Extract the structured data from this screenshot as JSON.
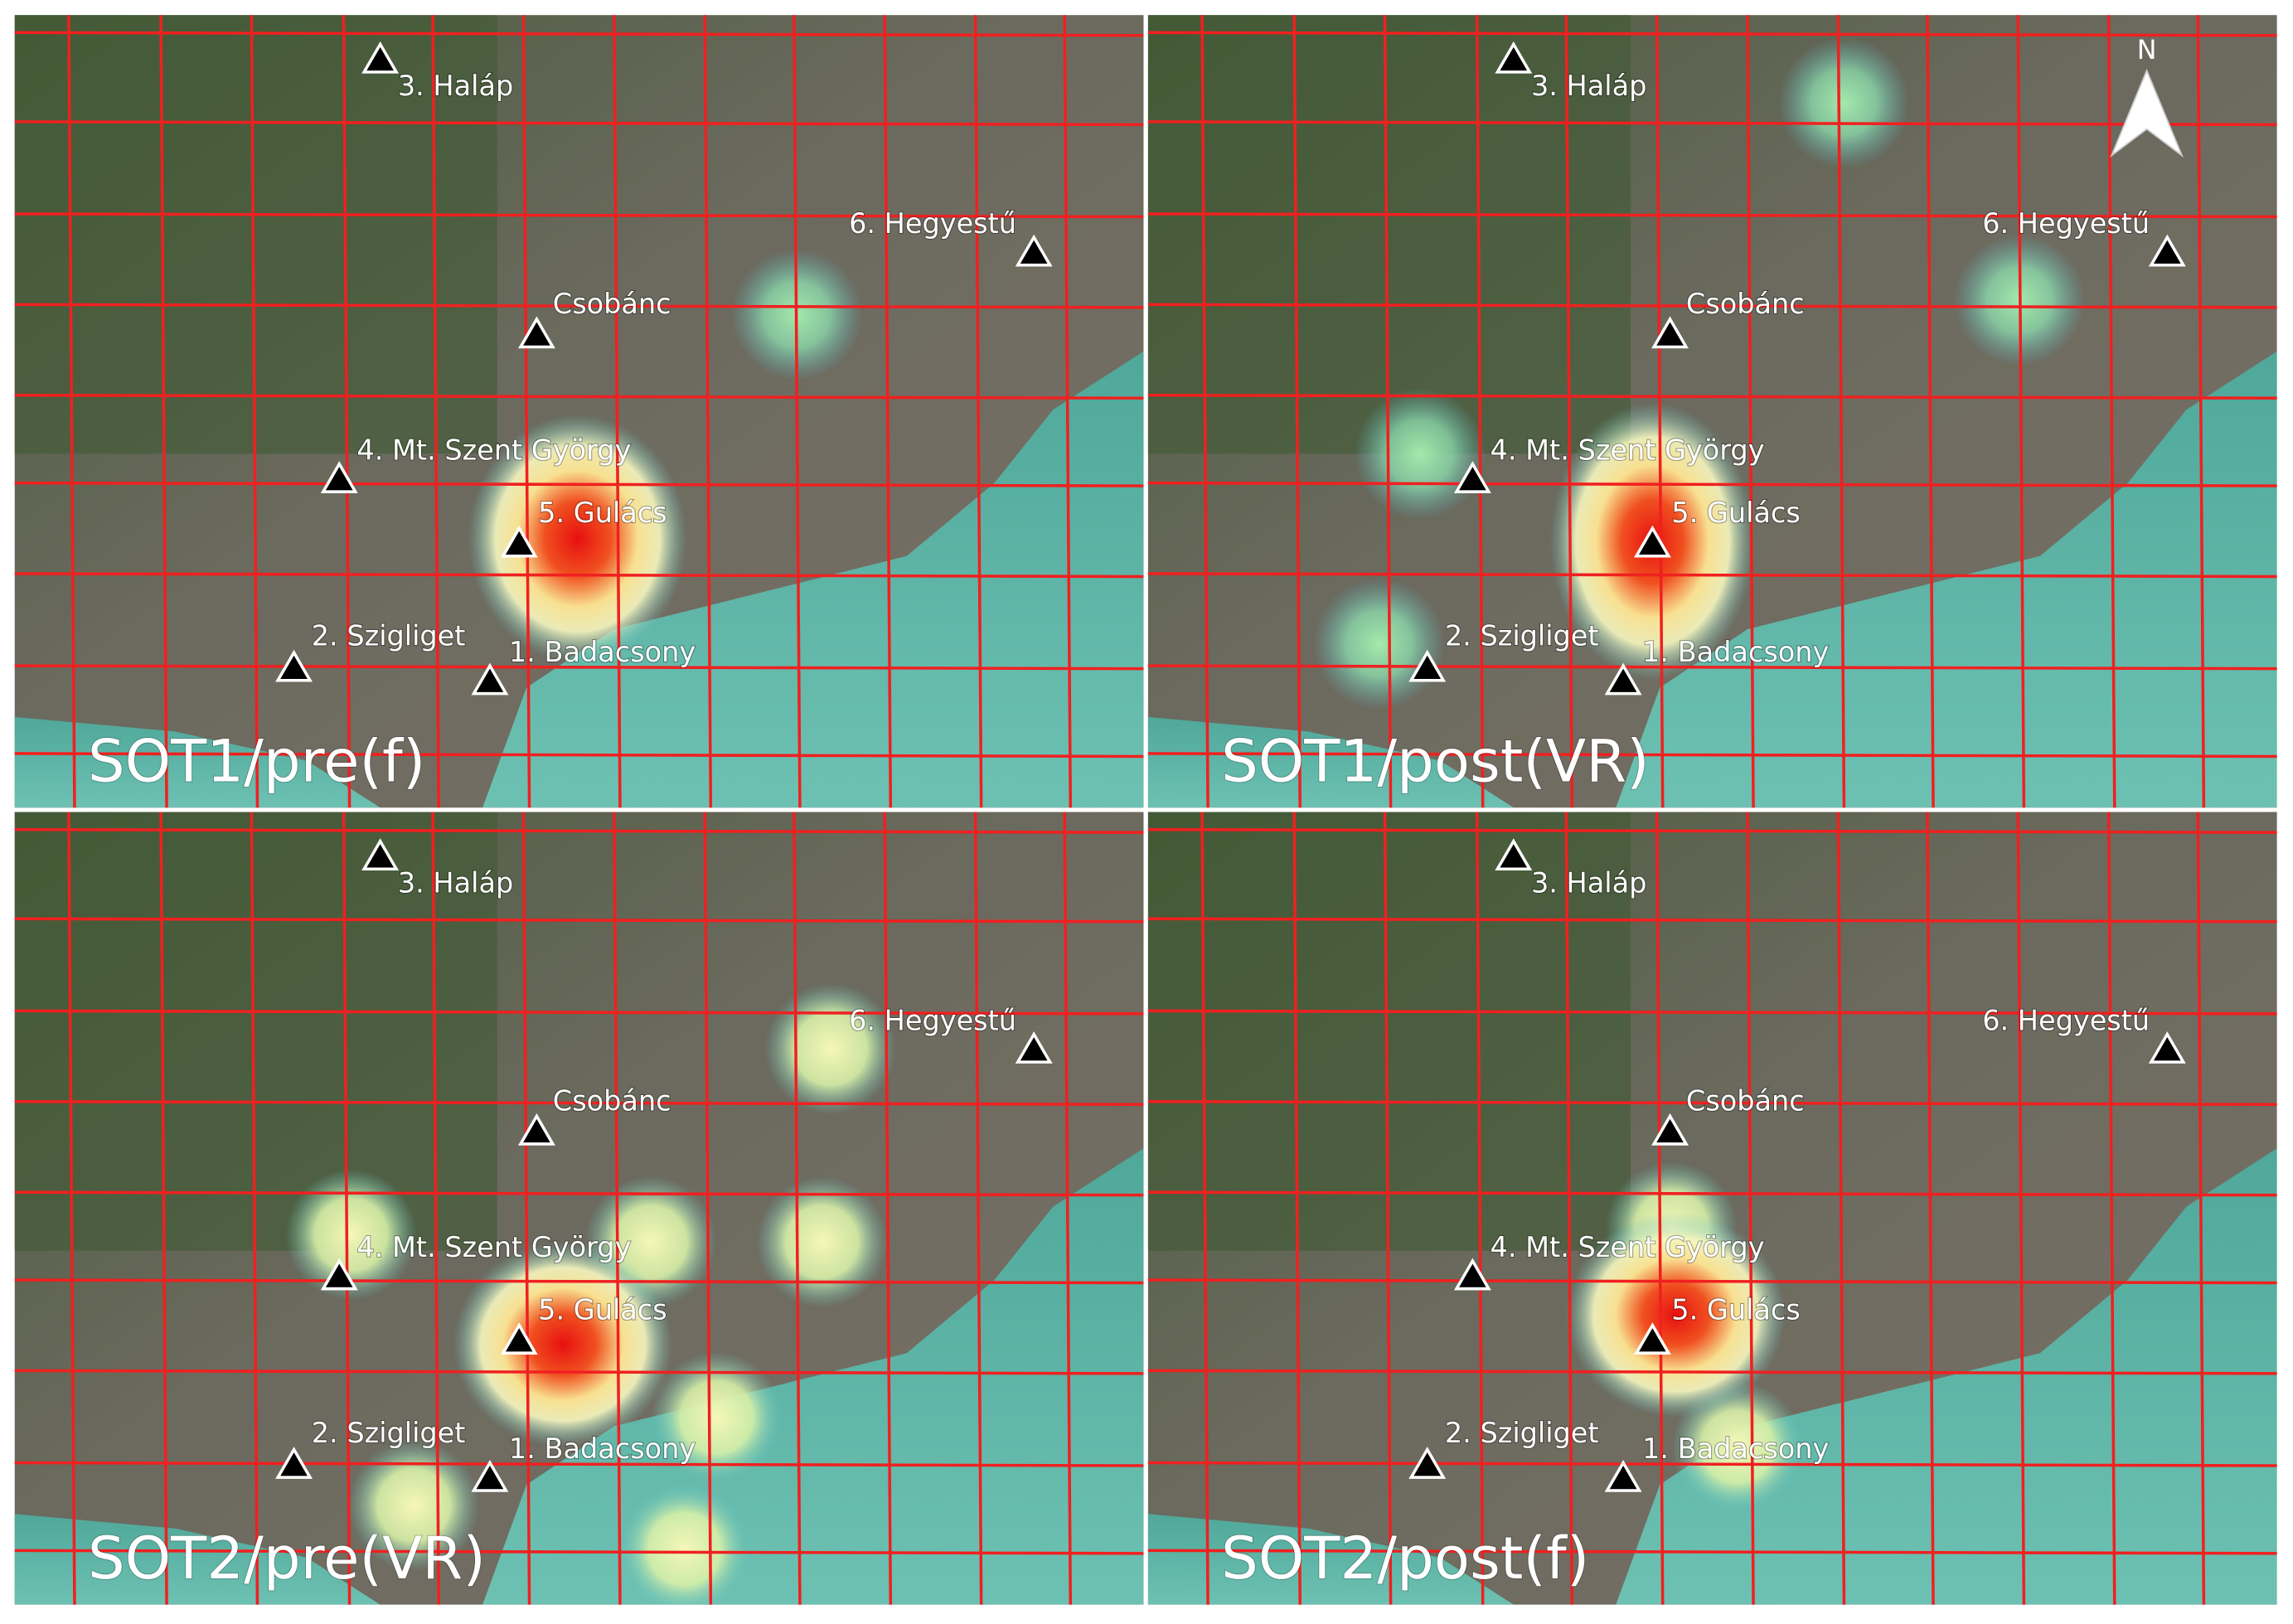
{
  "panels": [
    {
      "label": "SOT1/pre(f)",
      "landmarks": [
        "3. Haláp",
        "6. Hegyestű",
        "Csobánc",
        "4. Mt. Szent György",
        "5. Gulács",
        "2. Szigliget",
        "1. Badacsony"
      ]
    },
    {
      "label": "SOT1/post(VR)",
      "landmarks": [
        "3. Haláp",
        "6. Hegyestű",
        "Csobánc",
        "4. Mt. Szent György",
        "5. Gulács",
        "2. Szigliget",
        "1. Badacsony"
      ]
    },
    {
      "label": "SOT2/pre(VR)",
      "landmarks": [
        "3. Haláp",
        "6. Hegyestű",
        "Csobánc",
        "4. Mt. Szent György",
        "5. Gulács",
        "2. Szigliget",
        "1. Badacsony"
      ]
    },
    {
      "label": "SOT2/post(f)",
      "landmarks": [
        "3. Haláp",
        "6. Hegyestű",
        "Csobánc",
        "4. Mt. Szent György",
        "5. Gulács",
        "2. Szigliget",
        "1. Badacsony"
      ]
    }
  ],
  "north_arrow": "N"
}
